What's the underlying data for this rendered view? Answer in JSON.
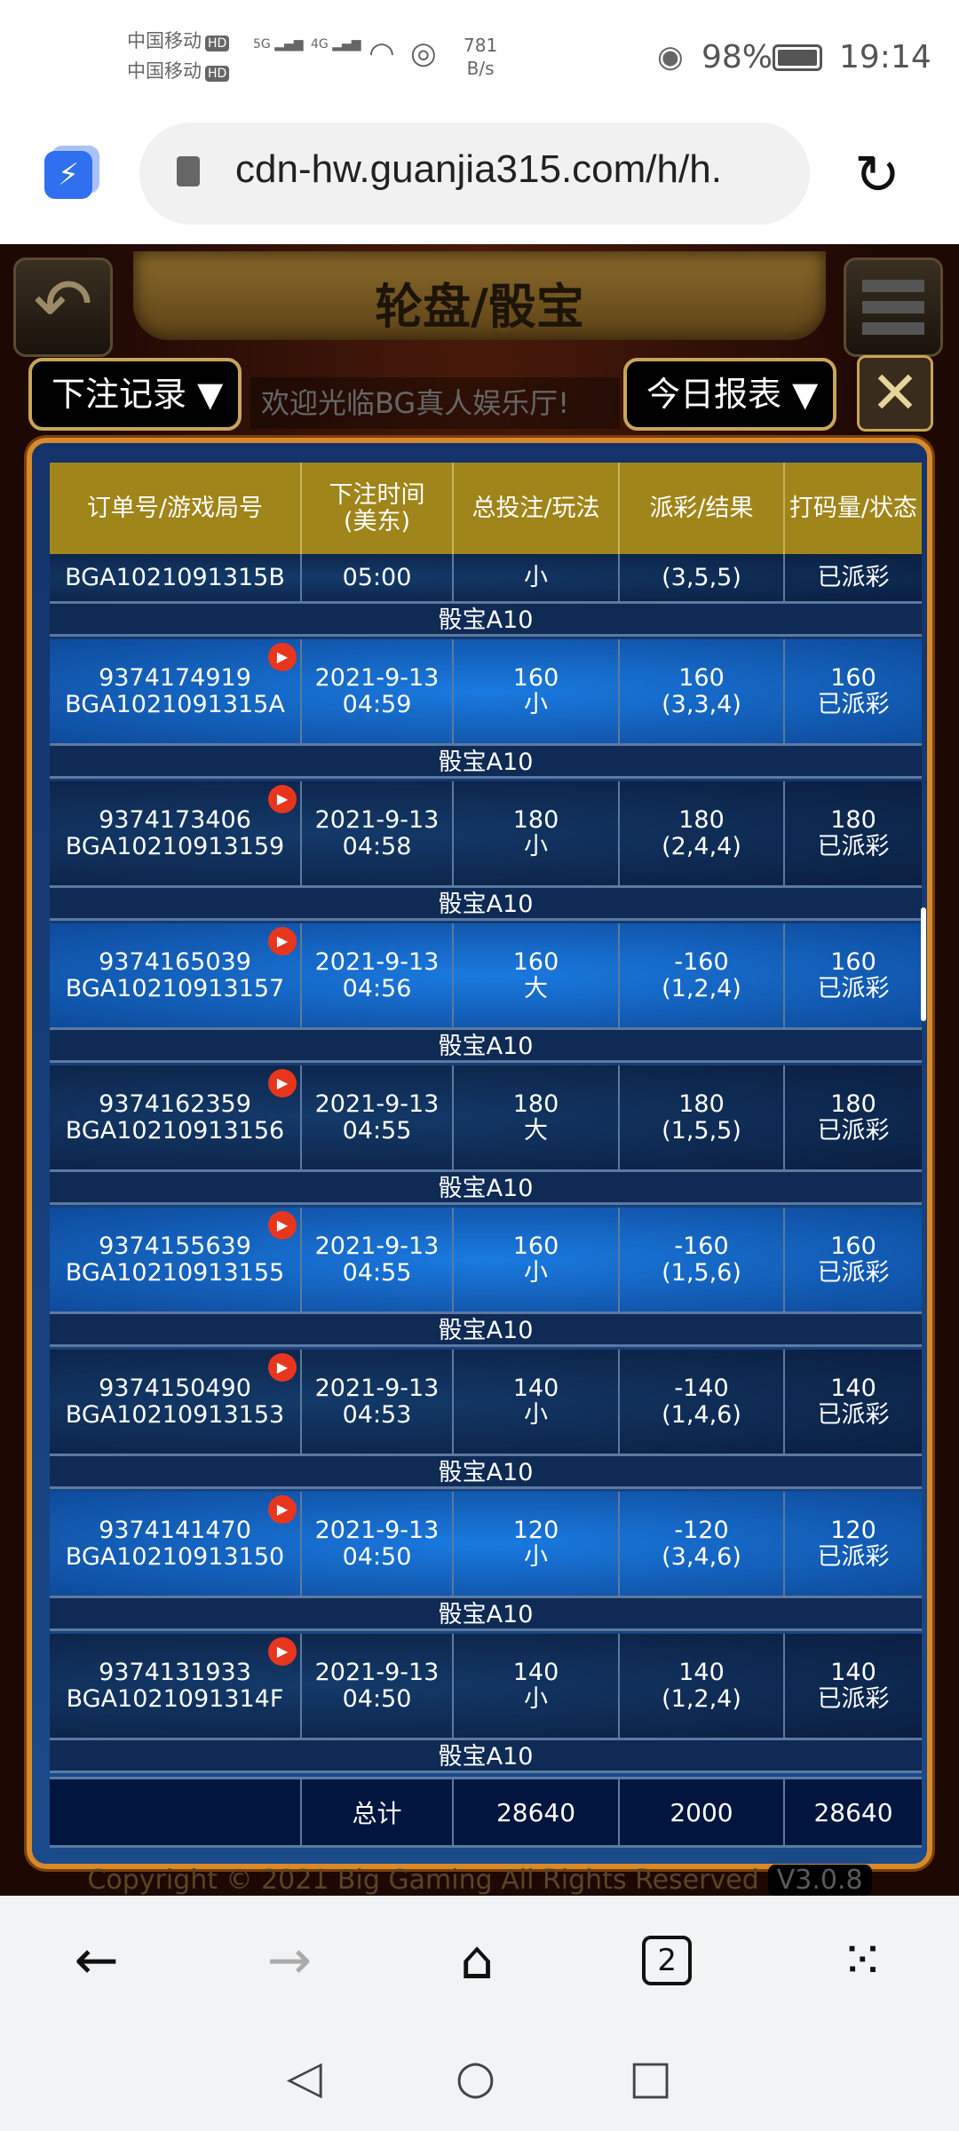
{
  "status": {
    "carrier1": "中国移动",
    "carrier2": "中国移动",
    "hd": "HD",
    "net1": "5G",
    "net2": "4G",
    "speed_value": "781",
    "speed_unit": "B/s",
    "battery": "98%",
    "time": "19:14"
  },
  "browser": {
    "url": "cdn-hw.guanjia315.com/h/h.",
    "tab_count": "2"
  },
  "game": {
    "title": "轮盘/骰宝",
    "record_dropdown": "下注记录",
    "report_dropdown": "今日报表",
    "marquee": "欢迎光临BG真人娱乐厅!",
    "copyright": "Copyright © 2021 Big Gaming All Rights Reserved",
    "version": "V3.0.8"
  },
  "table": {
    "headers": [
      "订单号/游戏局号",
      "下注时间\n(美东)",
      "总投注/玩法",
      "派彩/结果",
      "打码量/状态"
    ],
    "partial_row": {
      "game_id": "BGA1021091315B",
      "time": "05:00",
      "play": "小",
      "result": "(3,5,5)",
      "status": "已派彩"
    },
    "rows": [
      {
        "game": "骰宝A10",
        "order": "9374174919",
        "game_id": "BGA1021091315A",
        "date": "2021-9-13",
        "time": "04:59",
        "bet": "160",
        "play": "小",
        "payout": "160",
        "result": "(3,3,4)",
        "turnover": "160",
        "status": "已派彩"
      },
      {
        "game": "骰宝A10",
        "order": "9374173406",
        "game_id": "BGA10210913159",
        "date": "2021-9-13",
        "time": "04:58",
        "bet": "180",
        "play": "小",
        "payout": "180",
        "result": "(2,4,4)",
        "turnover": "180",
        "status": "已派彩"
      },
      {
        "game": "骰宝A10",
        "order": "9374165039",
        "game_id": "BGA10210913157",
        "date": "2021-9-13",
        "time": "04:56",
        "bet": "160",
        "play": "大",
        "payout": "-160",
        "result": "(1,2,4)",
        "turnover": "160",
        "status": "已派彩"
      },
      {
        "game": "骰宝A10",
        "order": "9374162359",
        "game_id": "BGA10210913156",
        "date": "2021-9-13",
        "time": "04:55",
        "bet": "180",
        "play": "大",
        "payout": "180",
        "result": "(1,5,5)",
        "turnover": "180",
        "status": "已派彩"
      },
      {
        "game": "骰宝A10",
        "order": "9374155639",
        "game_id": "BGA10210913155",
        "date": "2021-9-13",
        "time": "04:55",
        "bet": "160",
        "play": "小",
        "payout": "-160",
        "result": "(1,5,6)",
        "turnover": "160",
        "status": "已派彩"
      },
      {
        "game": "骰宝A10",
        "order": "9374150490",
        "game_id": "BGA10210913153",
        "date": "2021-9-13",
        "time": "04:53",
        "bet": "140",
        "play": "小",
        "payout": "-140",
        "result": "(1,4,6)",
        "turnover": "140",
        "status": "已派彩"
      },
      {
        "game": "骰宝A10",
        "order": "9374141470",
        "game_id": "BGA10210913150",
        "date": "2021-9-13",
        "time": "04:50",
        "bet": "120",
        "play": "小",
        "payout": "-120",
        "result": "(3,4,6)",
        "turnover": "120",
        "status": "已派彩"
      },
      {
        "game": "骰宝A10",
        "order": "9374131933",
        "game_id": "BGA1021091314F",
        "date": "2021-9-13",
        "time": "04:50",
        "bet": "140",
        "play": "小",
        "payout": "140",
        "result": "(1,2,4)",
        "turnover": "140",
        "status": "已派彩"
      }
    ],
    "total": {
      "label": "总计",
      "bet": "28640",
      "payout": "2000",
      "turnover": "28640"
    }
  },
  "colors": {
    "header_gold": "#a0851a",
    "frame_orange": "#d88a2a",
    "play_red": "#e8361e"
  }
}
